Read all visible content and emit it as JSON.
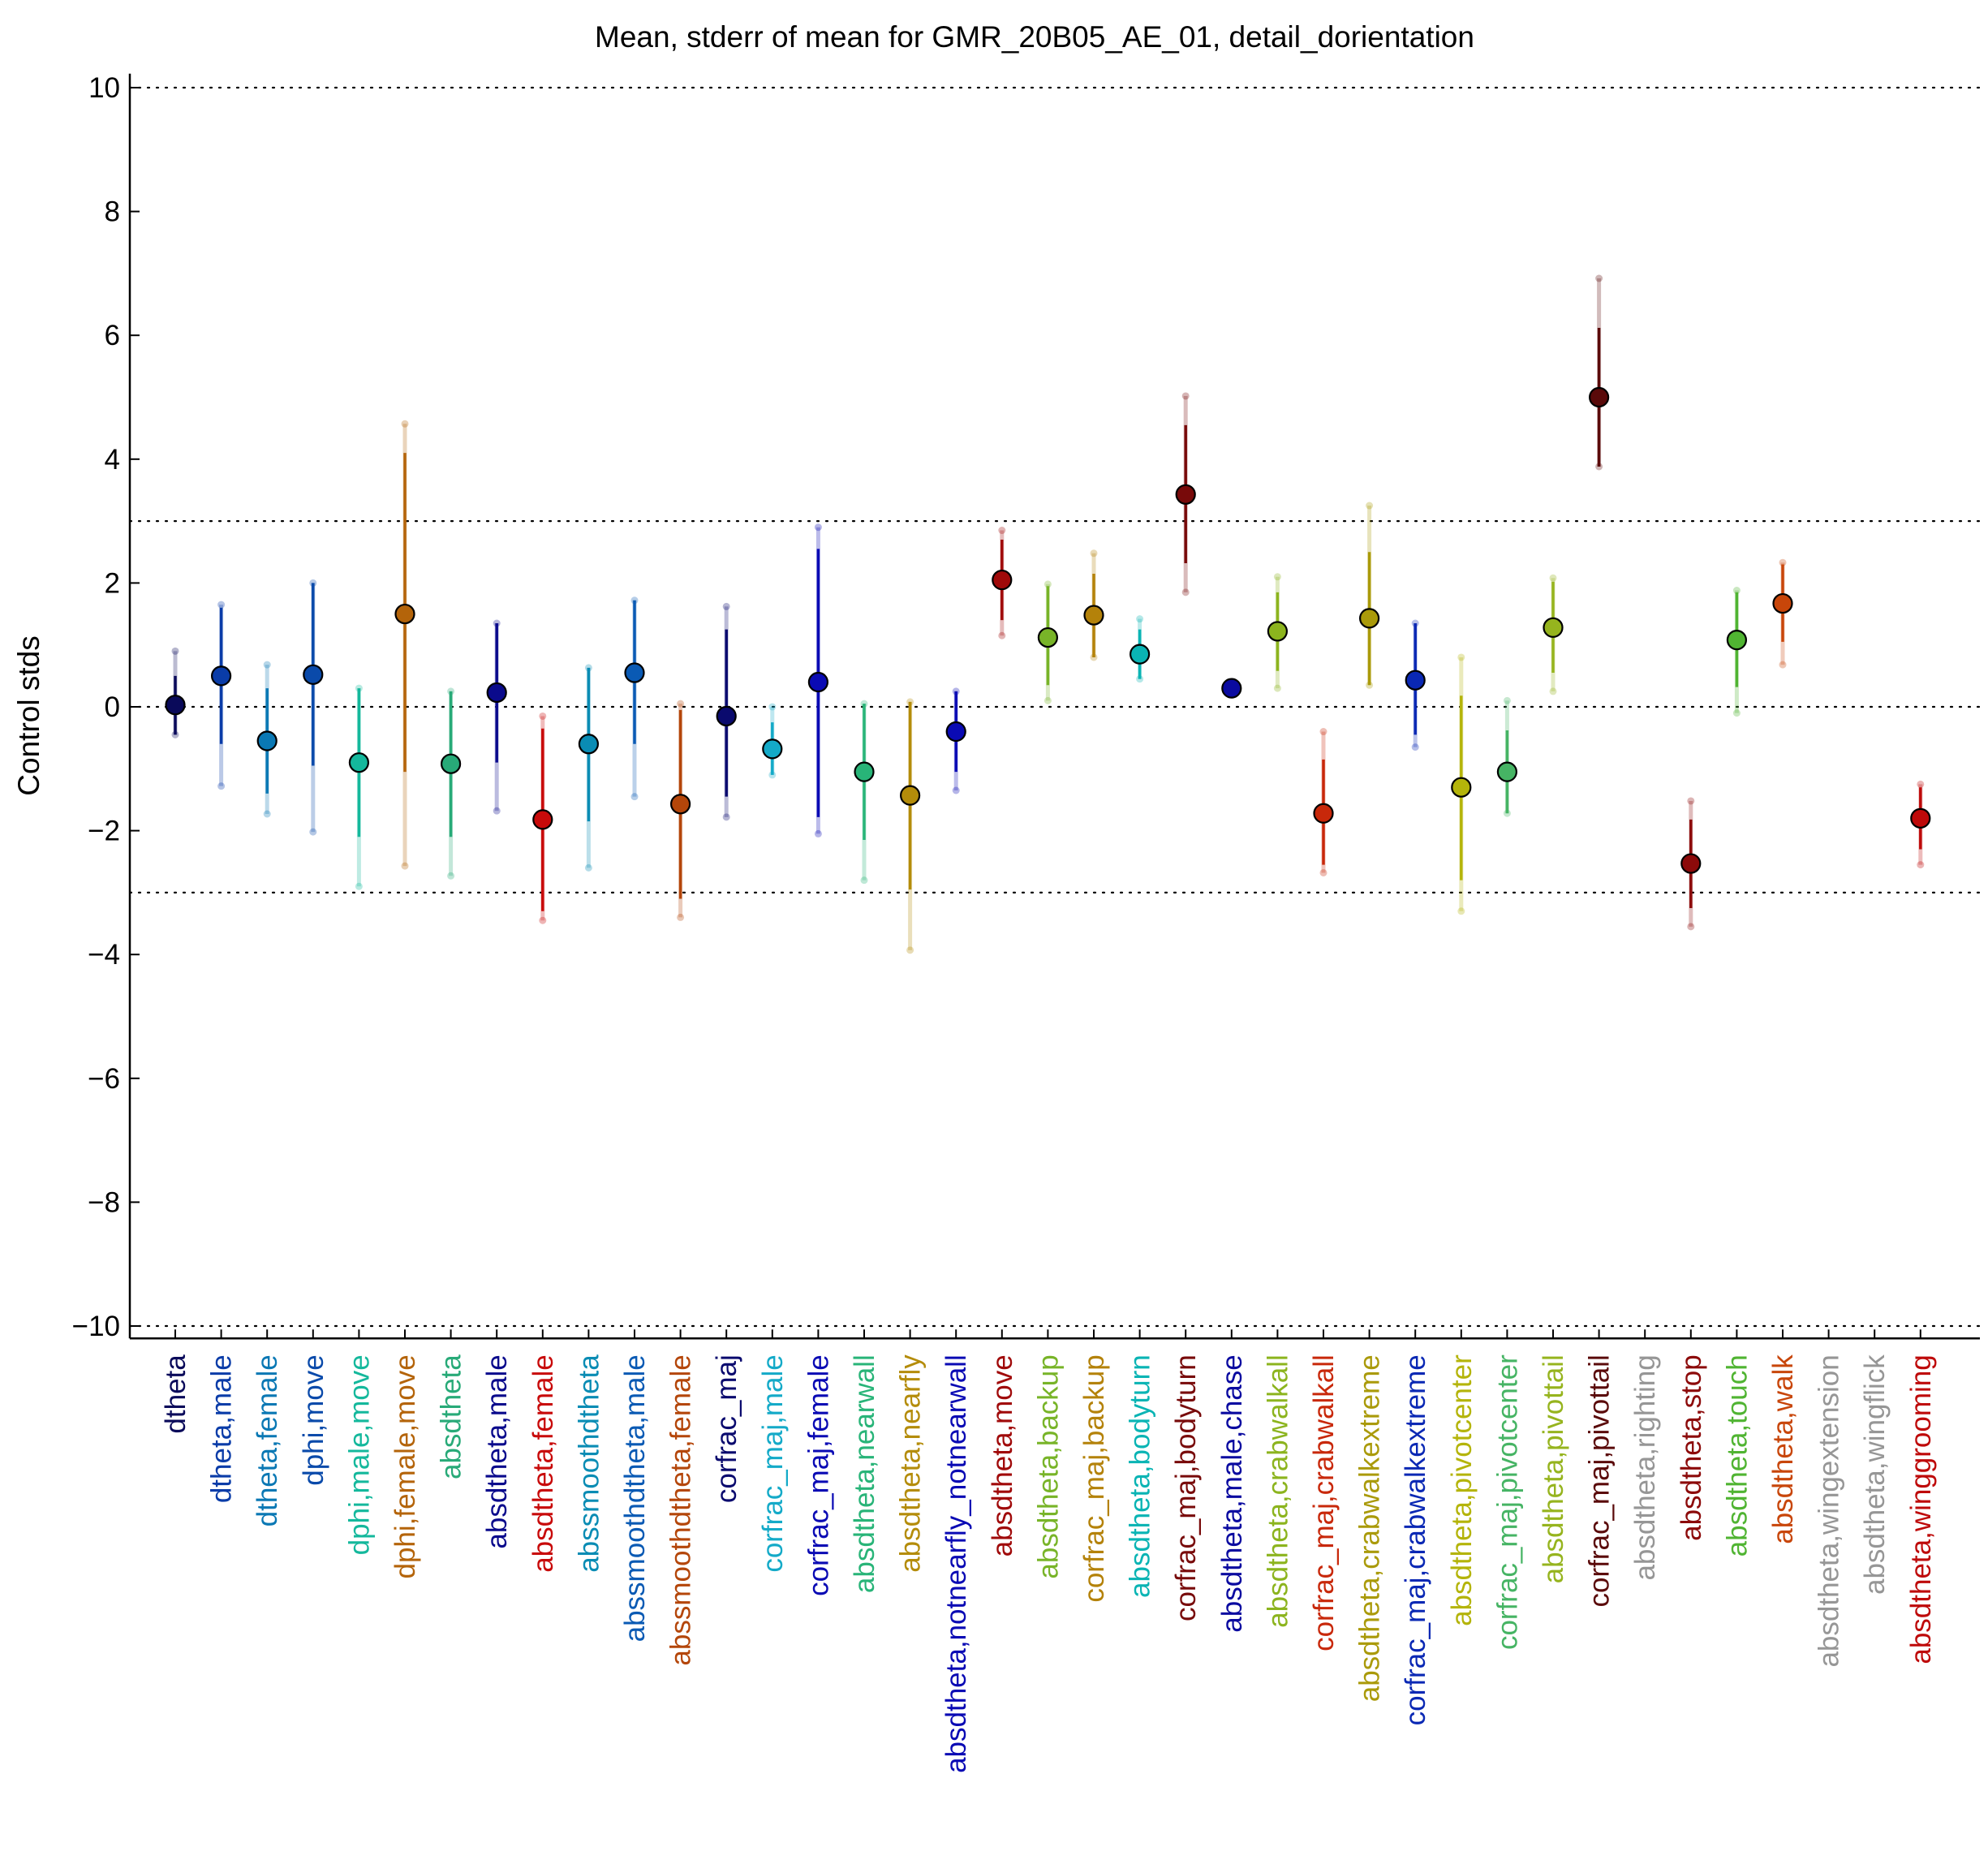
{
  "chart_data": {
    "type": "scatter",
    "title": "Mean, stderr of mean for GMR_20B05_AE_01, detail_dorientation",
    "xlabel": "",
    "ylabel": "Control stds",
    "ylim": [
      -10.2,
      10.2
    ],
    "yticks": [
      10,
      8,
      6,
      4,
      2,
      0,
      -2,
      -4,
      -6,
      -8,
      -10
    ],
    "ytick_labels": [
      "10",
      "8",
      "6",
      "4",
      "2",
      "0",
      "−2",
      "−4",
      "−6",
      "−8",
      "−10"
    ],
    "reference_lines": [
      10,
      3,
      0,
      -3,
      -10
    ],
    "grid": false,
    "legend": "none",
    "categories": [
      {
        "label": "dtheta",
        "color": "#0a0a5a",
        "mean": 0.03,
        "se_lo": -0.45,
        "se_hi": 0.5,
        "sd_lo": -0.45,
        "sd_hi": 0.9
      },
      {
        "label": "dtheta,male",
        "color": "#0a3ca8",
        "mean": 0.5,
        "se_lo": -0.6,
        "se_hi": 1.6,
        "sd_lo": -1.28,
        "sd_hi": 1.65
      },
      {
        "label": "dtheta,female",
        "color": "#0a78b4",
        "mean": -0.55,
        "se_lo": -1.4,
        "se_hi": 0.3,
        "sd_lo": -1.73,
        "sd_hi": 0.68
      },
      {
        "label": "dphi,move",
        "color": "#0a4aaa",
        "mean": 0.52,
        "se_lo": -0.95,
        "se_hi": 2.0,
        "sd_lo": -2.02,
        "sd_hi": 2.0
      },
      {
        "label": "dphi,male,move",
        "color": "#14b89c",
        "mean": -0.9,
        "se_lo": -2.1,
        "se_hi": 0.3,
        "sd_lo": -2.9,
        "sd_hi": 0.3
      },
      {
        "label": "dphi,female,move",
        "color": "#b4640a",
        "mean": 1.5,
        "se_lo": -1.05,
        "se_hi": 4.1,
        "sd_lo": -2.57,
        "sd_hi": 4.57
      },
      {
        "label": "absdtheta",
        "color": "#28aa78",
        "mean": -0.92,
        "se_lo": -2.1,
        "se_hi": 0.25,
        "sd_lo": -2.73,
        "sd_hi": 0.25
      },
      {
        "label": "absdtheta,male",
        "color": "#0a0a8c",
        "mean": 0.23,
        "se_lo": -0.9,
        "se_hi": 1.35,
        "sd_lo": -1.68,
        "sd_hi": 1.35
      },
      {
        "label": "absdtheta,female",
        "color": "#c80a0a",
        "mean": -1.82,
        "se_lo": -3.3,
        "se_hi": -0.35,
        "sd_lo": -3.45,
        "sd_hi": -0.15
      },
      {
        "label": "abssmoothdtheta",
        "color": "#0a8cb4",
        "mean": -0.6,
        "se_lo": -1.85,
        "se_hi": 0.63,
        "sd_lo": -2.6,
        "sd_hi": 0.63
      },
      {
        "label": "abssmoothdtheta,male",
        "color": "#0a5ab4",
        "mean": 0.55,
        "se_lo": -0.6,
        "se_hi": 1.72,
        "sd_lo": -1.45,
        "sd_hi": 1.72
      },
      {
        "label": "abssmoothdtheta,female",
        "color": "#b4460a",
        "mean": -1.57,
        "se_lo": -3.1,
        "se_hi": -0.05,
        "sd_lo": -3.4,
        "sd_hi": 0.05
      },
      {
        "label": "corfrac_maj",
        "color": "#0a0a6e",
        "mean": -0.15,
        "se_lo": -1.45,
        "se_hi": 1.25,
        "sd_lo": -1.78,
        "sd_hi": 1.62
      },
      {
        "label": "corfrac_maj,male",
        "color": "#14aac8",
        "mean": -0.68,
        "se_lo": -1.1,
        "se_hi": -0.25,
        "sd_lo": -1.1,
        "sd_hi": 0.0
      },
      {
        "label": "corfrac_maj,female",
        "color": "#0a0ab4",
        "mean": 0.4,
        "se_lo": -1.78,
        "se_hi": 2.55,
        "sd_lo": -2.05,
        "sd_hi": 2.9
      },
      {
        "label": "absdtheta,nearwall",
        "color": "#28b478",
        "mean": -1.05,
        "se_lo": -2.15,
        "se_hi": 0.05,
        "sd_lo": -2.8,
        "sd_hi": 0.05
      },
      {
        "label": "absdtheta,nearfly",
        "color": "#b48c0a",
        "mean": -1.43,
        "se_lo": -2.95,
        "se_hi": 0.08,
        "sd_lo": -3.93,
        "sd_hi": 0.08
      },
      {
        "label": "absdtheta,notnearfly_notnearwall",
        "color": "#0a0ab4",
        "mean": -0.4,
        "se_lo": -1.05,
        "se_hi": 0.25,
        "sd_lo": -1.35,
        "sd_hi": 0.25
      },
      {
        "label": "absdtheta,move",
        "color": "#a00a0a",
        "mean": 2.05,
        "se_lo": 1.4,
        "se_hi": 2.7,
        "sd_lo": 1.15,
        "sd_hi": 2.85
      },
      {
        "label": "absdtheta,backup",
        "color": "#78b428",
        "mean": 1.12,
        "se_lo": 0.35,
        "se_hi": 1.95,
        "sd_lo": 0.1,
        "sd_hi": 1.98
      },
      {
        "label": "corfrac_maj,backup",
        "color": "#b4820a",
        "mean": 1.48,
        "se_lo": 0.8,
        "se_hi": 2.15,
        "sd_lo": 0.8,
        "sd_hi": 2.48
      },
      {
        "label": "absdtheta,bodyturn",
        "color": "#0ab4b4",
        "mean": 0.85,
        "se_lo": 0.45,
        "se_hi": 1.25,
        "sd_lo": 0.45,
        "sd_hi": 1.42
      },
      {
        "label": "corfrac_maj,bodyturn",
        "color": "#780a0a",
        "mean": 3.43,
        "se_lo": 2.32,
        "se_hi": 4.55,
        "sd_lo": 1.85,
        "sd_hi": 5.02
      },
      {
        "label": "absdtheta,male,chase",
        "color": "#0a0aa0",
        "mean": 0.3,
        "se_lo": 0.3,
        "se_hi": 0.3,
        "sd_lo": 0.3,
        "sd_hi": 0.3
      },
      {
        "label": "absdtheta,crabwalkall",
        "color": "#8cb41e",
        "mean": 1.22,
        "se_lo": 0.58,
        "se_hi": 1.85,
        "sd_lo": 0.3,
        "sd_hi": 2.1
      },
      {
        "label": "corfrac_maj,crabwalkall",
        "color": "#c8280a",
        "mean": -1.72,
        "se_lo": -2.55,
        "se_hi": -0.85,
        "sd_lo": -2.68,
        "sd_hi": -0.4
      },
      {
        "label": "absdtheta,crabwalkextreme",
        "color": "#aa9a0a",
        "mean": 1.43,
        "se_lo": 0.35,
        "se_hi": 2.5,
        "sd_lo": 0.35,
        "sd_hi": 3.25
      },
      {
        "label": "corfrac_maj,crabwalkextreme",
        "color": "#0a28b4",
        "mean": 0.43,
        "se_lo": -0.45,
        "se_hi": 1.35,
        "sd_lo": -0.65,
        "sd_hi": 1.35
      },
      {
        "label": "absdtheta,pivotcenter",
        "color": "#b4b40a",
        "mean": -1.3,
        "se_lo": -2.8,
        "se_hi": 0.18,
        "sd_lo": -3.3,
        "sd_hi": 0.8
      },
      {
        "label": "corfrac_maj,pivotcenter",
        "color": "#46b464",
        "mean": -1.05,
        "se_lo": -1.72,
        "se_hi": -0.38,
        "sd_lo": -1.72,
        "sd_hi": 0.1
      },
      {
        "label": "absdtheta,pivottail",
        "color": "#96b41e",
        "mean": 1.28,
        "se_lo": 0.55,
        "se_hi": 2.02,
        "sd_lo": 0.25,
        "sd_hi": 2.08
      },
      {
        "label": "corfrac_maj,pivottail",
        "color": "#5a0a0a",
        "mean": 5.0,
        "se_lo": 3.88,
        "se_hi": 6.12,
        "sd_lo": 3.88,
        "sd_hi": 6.92
      },
      {
        "label": "absdtheta,righting",
        "color": "#969696",
        "mean": null
      },
      {
        "label": "absdtheta,stop",
        "color": "#8c0a0a",
        "mean": -2.53,
        "se_lo": -3.25,
        "se_hi": -1.82,
        "sd_lo": -3.55,
        "sd_hi": -1.52
      },
      {
        "label": "absdtheta,touch",
        "color": "#50b432",
        "mean": 1.08,
        "se_lo": 0.32,
        "se_hi": 1.85,
        "sd_lo": -0.1,
        "sd_hi": 1.88
      },
      {
        "label": "absdtheta,walk",
        "color": "#c8460a",
        "mean": 1.67,
        "se_lo": 1.05,
        "se_hi": 2.3,
        "sd_lo": 0.68,
        "sd_hi": 2.33
      },
      {
        "label": "absdtheta,wingextension",
        "color": "#969696",
        "mean": null
      },
      {
        "label": "absdtheta,wingflick",
        "color": "#969696",
        "mean": null
      },
      {
        "label": "absdtheta,winggrooming",
        "color": "#be0a0a",
        "mean": -1.8,
        "se_lo": -2.3,
        "se_hi": -1.3,
        "sd_lo": -2.55,
        "sd_hi": -1.25
      }
    ]
  }
}
